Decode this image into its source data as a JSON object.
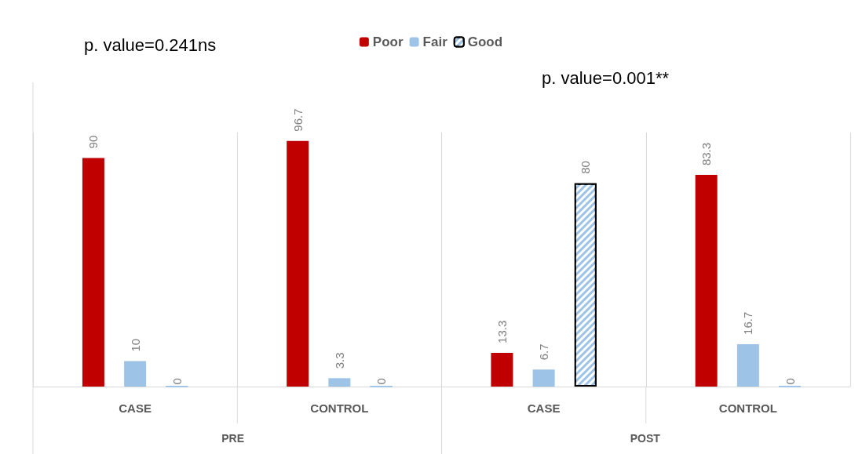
{
  "chart_data": {
    "type": "bar",
    "categories": [
      "CASE",
      "CONTROL",
      "CASE",
      "CONTROL"
    ],
    "series": [
      {
        "name": "Poor",
        "color": "#c00000",
        "values": [
          90,
          96.7,
          13.3,
          83.3
        ]
      },
      {
        "name": "Fair",
        "color": "#9dc3e6",
        "values": [
          10,
          3.3,
          6.7,
          16.7
        ]
      },
      {
        "name": "Good",
        "color": "#9dc3e6",
        "values": [
          0,
          0,
          80,
          0
        ]
      }
    ],
    "data_labels": true,
    "legend": "top",
    "grid": "x",
    "annotations": [
      "p. value=0.241ns",
      "p. value=0.001**",
      "PRE",
      "POST"
    ]
  }
}
